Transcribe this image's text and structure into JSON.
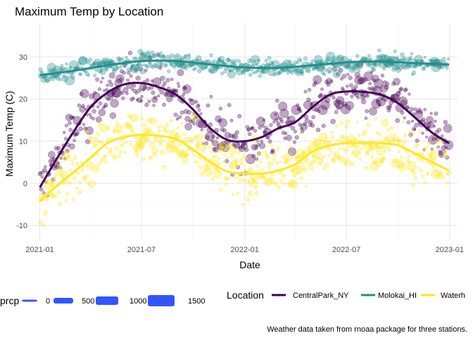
{
  "chart_data": {
    "type": "scatter",
    "title": "Maximum Temp by Location",
    "xlabel": "Date",
    "ylabel": "Maximum Temp (C)",
    "caption": "Weather data taken from rnoaa package for three stations.",
    "x_ticks": [
      "2021-01",
      "2021-07",
      "2022-01",
      "2022-07",
      "2023-01"
    ],
    "y_ticks": [
      -10,
      0,
      10,
      20,
      30
    ],
    "xlim": [
      "2020-12-15",
      "2023-01-15"
    ],
    "ylim": [
      -13.5,
      38
    ],
    "grid": true,
    "legend_position": "bottom",
    "size_legend": {
      "title": "prcp",
      "labels": [
        "0",
        "500",
        "1000",
        "1500"
      ],
      "color": "#3355ff"
    },
    "color_legend": {
      "title": "Location",
      "labels": [
        "CentralPark_NY",
        "Molokai_HI",
        "Waterh"
      ]
    },
    "series": [
      {
        "name": "CentralPark_NY",
        "color": "#440154",
        "smooth": [
          [
            "2021-01-01",
            -1
          ],
          [
            "2021-02-01",
            6
          ],
          [
            "2021-03-01",
            12
          ],
          [
            "2021-04-01",
            18
          ],
          [
            "2021-05-01",
            21.5
          ],
          [
            "2021-06-01",
            23.5
          ],
          [
            "2021-07-01",
            23.8
          ],
          [
            "2021-08-01",
            22.8
          ],
          [
            "2021-09-01",
            21
          ],
          [
            "2021-10-01",
            17.5
          ],
          [
            "2021-11-01",
            13
          ],
          [
            "2021-12-01",
            10.3
          ],
          [
            "2022-01-01",
            10
          ],
          [
            "2022-02-01",
            11
          ],
          [
            "2022-03-01",
            13
          ],
          [
            "2022-04-01",
            14.5
          ],
          [
            "2022-05-01",
            18
          ],
          [
            "2022-06-01",
            21
          ],
          [
            "2022-07-01",
            21.8
          ],
          [
            "2022-08-01",
            21.7
          ],
          [
            "2022-09-01",
            21
          ],
          [
            "2022-10-01",
            19
          ],
          [
            "2022-11-01",
            15.5
          ],
          [
            "2022-12-01",
            12
          ],
          [
            "2022-12-31",
            9.5
          ]
        ]
      },
      {
        "name": "Molokai_HI",
        "color": "#21908c",
        "smooth": [
          [
            "2021-01-01",
            25.7
          ],
          [
            "2021-03-01",
            26.7
          ],
          [
            "2021-05-01",
            28
          ],
          [
            "2021-07-01",
            29
          ],
          [
            "2021-09-01",
            29
          ],
          [
            "2021-11-01",
            28.2
          ],
          [
            "2022-01-01",
            27.5
          ],
          [
            "2022-03-01",
            27.4
          ],
          [
            "2022-05-01",
            28
          ],
          [
            "2022-07-01",
            28.7
          ],
          [
            "2022-09-01",
            28.9
          ],
          [
            "2022-11-01",
            28.5
          ],
          [
            "2022-12-31",
            28.2
          ]
        ]
      },
      {
        "name": "Waterhole_WA",
        "color": "#fde725",
        "smooth": [
          [
            "2021-01-01",
            -4.3
          ],
          [
            "2021-02-01",
            -0.5
          ],
          [
            "2021-03-01",
            2.5
          ],
          [
            "2021-04-01",
            6
          ],
          [
            "2021-05-01",
            9.5
          ],
          [
            "2021-06-01",
            11
          ],
          [
            "2021-07-01",
            11.5
          ],
          [
            "2021-08-01",
            11.3
          ],
          [
            "2021-09-01",
            10.5
          ],
          [
            "2021-10-01",
            8
          ],
          [
            "2021-11-01",
            5
          ],
          [
            "2021-12-01",
            2.8
          ],
          [
            "2022-01-01",
            2.3
          ],
          [
            "2022-02-01",
            2.3
          ],
          [
            "2022-03-01",
            3
          ],
          [
            "2022-04-01",
            4.5
          ],
          [
            "2022-05-01",
            7.5
          ],
          [
            "2022-06-01",
            9
          ],
          [
            "2022-07-01",
            9.5
          ],
          [
            "2022-08-01",
            9.6
          ],
          [
            "2022-09-01",
            9.5
          ],
          [
            "2022-10-01",
            9
          ],
          [
            "2022-11-01",
            7
          ],
          [
            "2022-12-01",
            5
          ],
          [
            "2022-12-31",
            3
          ]
        ]
      }
    ]
  }
}
